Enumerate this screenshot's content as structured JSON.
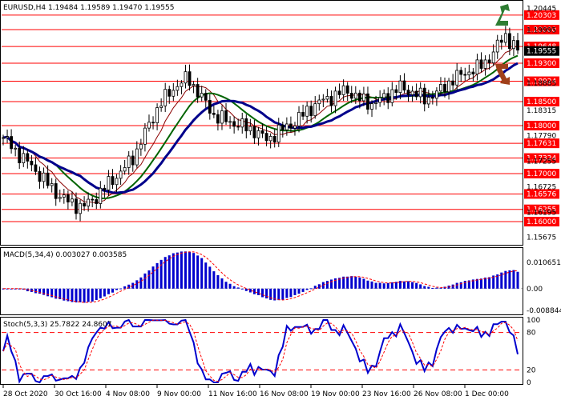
{
  "header": {
    "symbol": "EURUSD,H4",
    "ohlc": "1.19484 1.19589 1.19470 1.19555"
  },
  "price_axis": {
    "min": 1.1555,
    "max": 1.2055,
    "ticks": [
      "1.20445",
      "1.19995",
      "1.19535",
      "1.18885",
      "1.18315",
      "1.17790",
      "1.17255",
      "1.16725",
      "1.16195",
      "1.15675"
    ],
    "current": "1.19555"
  },
  "levels": [
    {
      "value": 1.20303,
      "label": "1.20303"
    },
    {
      "value": 1.2,
      "label": "1.20000"
    },
    {
      "value": 1.19648,
      "label": "1.19648"
    },
    {
      "value": 1.193,
      "label": "1.19300"
    },
    {
      "value": 1.18924,
      "label": "1.18924"
    },
    {
      "value": 1.185,
      "label": "1.18500"
    },
    {
      "value": 1.18,
      "label": "1.18000"
    },
    {
      "value": 1.17631,
      "label": "1.17631"
    },
    {
      "value": 1.17324,
      "label": "1.17324"
    },
    {
      "value": 1.17,
      "label": "1.17000"
    },
    {
      "value": 1.16576,
      "label": "1.16576"
    },
    {
      "value": 1.16255,
      "label": "1.16255"
    },
    {
      "value": 1.16,
      "label": "1.16000"
    }
  ],
  "colors": {
    "level": "#ff0000",
    "level_label_bg": "#ff0000",
    "ma_fast": "#8b0000",
    "ma_mid": "#006400",
    "ma_slow": "#00008b",
    "macd": "#0000cd",
    "signal": "#ff0000",
    "stoch_main": "#0000cd",
    "stoch_signal": "#ff0000",
    "arrow_up": "#2e7d32",
    "arrow_down": "#a0401a"
  },
  "icons": {
    "up": "trend-up-arrow-icon",
    "down": "trend-down-arrow-icon"
  },
  "macd": {
    "label": "MACD(5,34,4) 0.003027 0.003585",
    "ticks": [
      "0.010651",
      "0.00",
      "-0.008844"
    ],
    "max": 0.010651,
    "min": -0.008844
  },
  "stoch": {
    "label": "Stoch(5,3,3) 25.7822 24.8607",
    "ticks": [
      "100",
      "80",
      "20",
      "0"
    ],
    "levels": [
      80,
      20
    ]
  },
  "time_axis": [
    "28 Oct 2020",
    "30 Oct 16:00",
    "4 Nov 08:00",
    "9 Nov 00:00",
    "11 Nov 16:00",
    "16 Nov 08:00",
    "19 Nov 00:00",
    "23 Nov 16:00",
    "26 Nov 08:00",
    "1 Dec 00:00"
  ],
  "chart_data": {
    "type": "candlestick",
    "close_anchors": [
      1.1775,
      1.1745,
      1.172,
      1.169,
      1.166,
      1.164,
      1.163,
      1.165,
      1.168,
      1.1705,
      1.174,
      1.18,
      1.185,
      1.188,
      1.19,
      1.186,
      1.182,
      1.181,
      1.18,
      1.179,
      1.177,
      1.179,
      1.1805,
      1.183,
      1.185,
      1.186,
      1.1875,
      1.1855,
      1.1845,
      1.186,
      1.188,
      1.187,
      1.1855,
      1.187,
      1.1895,
      1.191,
      1.192,
      1.1945,
      1.199,
      1.1955
    ]
  }
}
